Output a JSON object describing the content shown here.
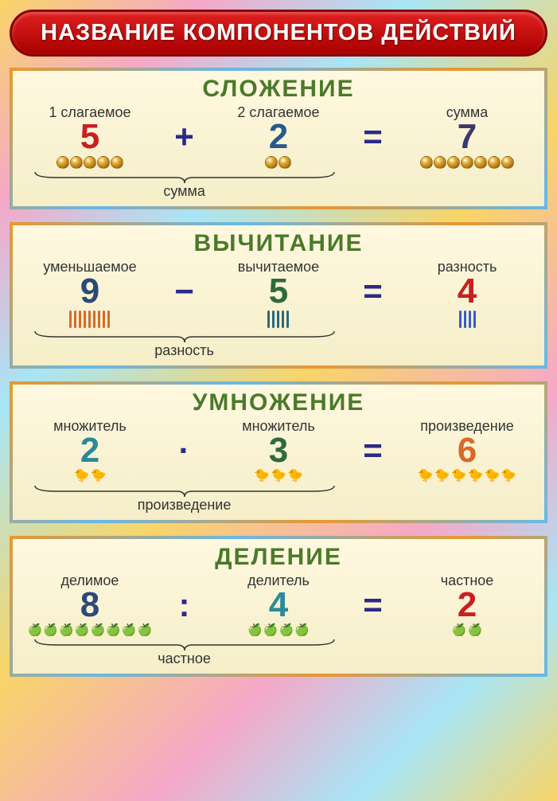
{
  "title": "НАЗВАНИЕ КОМПОНЕНТОВ ДЕЙСТВИЙ",
  "colors": {
    "banner_bg_top": "#e02020",
    "banner_bg_bottom": "#a80000",
    "card_title": "#4a7a2a",
    "op_color": "#2a2a8a"
  },
  "sections": [
    {
      "key": "addition",
      "title": "СЛОЖЕНИЕ",
      "term1": {
        "label": "1 слагаемое",
        "value": "5",
        "color": "#c82020",
        "icon_count": 5,
        "icon": "ball"
      },
      "op": "+",
      "term2": {
        "label": "2 слагаемое",
        "value": "2",
        "color": "#2a5a8a",
        "icon_count": 2,
        "icon": "ball"
      },
      "eq": "=",
      "result": {
        "label": "сумма",
        "value": "7",
        "color": "#3a3a6a",
        "icon_count": 7,
        "icon": "ball"
      },
      "brace_label": "сумма"
    },
    {
      "key": "subtraction",
      "title": "ВЫЧИТАНИЕ",
      "term1": {
        "label": "уменьшаемое",
        "value": "9",
        "color": "#2a4a7a",
        "icon_count": 9,
        "icon": "stick",
        "icon_color": "#d86a2a"
      },
      "op": "−",
      "term2": {
        "label": "вычитаемое",
        "value": "5",
        "color": "#2e6a3e",
        "icon_count": 5,
        "icon": "stick",
        "icon_color": "#2a6a7a"
      },
      "eq": "=",
      "result": {
        "label": "разность",
        "value": "4",
        "color": "#c82020",
        "icon_count": 4,
        "icon": "stick",
        "icon_color": "#3a5ac8"
      },
      "brace_label": "разность"
    },
    {
      "key": "multiplication",
      "title": "УМНОЖЕНИЕ",
      "term1": {
        "label": "множитель",
        "value": "2",
        "color": "#2a8a9a",
        "icon_count": 2,
        "icon": "duck"
      },
      "op": "·",
      "term2": {
        "label": "множитель",
        "value": "3",
        "color": "#2e6a3e",
        "icon_count": 3,
        "icon": "duck"
      },
      "eq": "=",
      "result": {
        "label": "произведение",
        "value": "6",
        "color": "#d86a2a",
        "icon_count": 6,
        "icon": "duck"
      },
      "brace_label": "произведение"
    },
    {
      "key": "division",
      "title": "ДЕЛЕНИЕ",
      "term1": {
        "label": "делимое",
        "value": "8",
        "color": "#2a4a7a",
        "icon_count": 8,
        "icon": "apple"
      },
      "op": ":",
      "term2": {
        "label": "делитель",
        "value": "4",
        "color": "#2a8a9a",
        "icon_count": 4,
        "icon": "apple"
      },
      "eq": "=",
      "result": {
        "label": "частное",
        "value": "2",
        "color": "#c82020",
        "icon_count": 2,
        "icon": "apple"
      },
      "brace_label": "частное"
    }
  ]
}
